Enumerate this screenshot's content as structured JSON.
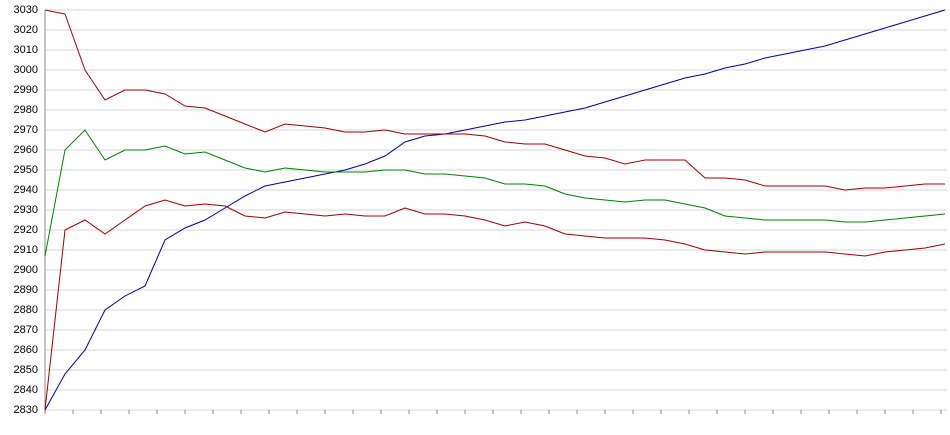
{
  "chart_data": {
    "type": "line",
    "ylim": [
      2830,
      3030
    ],
    "yticks": [
      2830,
      2840,
      2850,
      2860,
      2870,
      2880,
      2890,
      2900,
      2910,
      2920,
      2930,
      2940,
      2950,
      2960,
      2970,
      2980,
      2990,
      3000,
      3010,
      3020,
      3030
    ],
    "grid": true,
    "series": [
      {
        "color": "#0000a0",
        "values": [
          2830,
          2848,
          2860,
          2880,
          2887,
          2892,
          2915,
          2921,
          2925,
          2931,
          2937,
          2942,
          2944,
          2946,
          2948,
          2950,
          2953,
          2957,
          2964,
          2967,
          2968,
          2970,
          2972,
          2974,
          2975,
          2977,
          2979,
          2981,
          2984,
          2987,
          2990,
          2993,
          2996,
          2998,
          3001,
          3003,
          3006,
          3008,
          3010,
          3012,
          3015,
          3018,
          3021,
          3024,
          3027,
          3030
        ]
      },
      {
        "color": "#a00000",
        "values": [
          3030,
          3028,
          3000,
          2985,
          2990,
          2990,
          2988,
          2982,
          2981,
          2977,
          2973,
          2969,
          2973,
          2972,
          2971,
          2969,
          2969,
          2970,
          2968,
          2968,
          2968,
          2968,
          2967,
          2964,
          2963,
          2963,
          2960,
          2957,
          2956,
          2953,
          2955,
          2955,
          2955,
          2946,
          2946,
          2945,
          2942,
          2942,
          2942,
          2942,
          2940,
          2941,
          2941,
          2942,
          2943,
          2943
        ]
      },
      {
        "color": "#008000",
        "values": [
          2907,
          2960,
          2970,
          2955,
          2960,
          2960,
          2962,
          2958,
          2959,
          2955,
          2951,
          2949,
          2951,
          2950,
          2949,
          2949,
          2949,
          2950,
          2950,
          2948,
          2948,
          2947,
          2946,
          2943,
          2943,
          2942,
          2938,
          2936,
          2935,
          2934,
          2935,
          2935,
          2933,
          2931,
          2927,
          2926,
          2925,
          2925,
          2925,
          2925,
          2924,
          2924,
          2925,
          2926,
          2927,
          2928
        ]
      },
      {
        "color": "#a00000",
        "values": [
          2830,
          2920,
          2925,
          2918,
          2925,
          2932,
          2935,
          2932,
          2933,
          2932,
          2927,
          2926,
          2929,
          2928,
          2927,
          2928,
          2927,
          2927,
          2931,
          2928,
          2928,
          2927,
          2925,
          2922,
          2924,
          2922,
          2918,
          2917,
          2916,
          2916,
          2916,
          2915,
          2913,
          2910,
          2909,
          2908,
          2909,
          2909,
          2909,
          2909,
          2908,
          2907,
          2909,
          2910,
          2911,
          2913
        ]
      }
    ]
  }
}
